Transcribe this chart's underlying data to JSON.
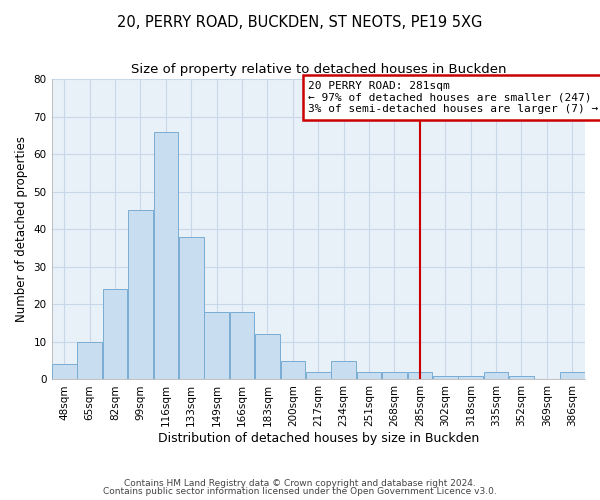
{
  "title": "20, PERRY ROAD, BUCKDEN, ST NEOTS, PE19 5XG",
  "subtitle": "Size of property relative to detached houses in Buckden",
  "xlabel": "Distribution of detached houses by size in Buckden",
  "ylabel": "Number of detached properties",
  "bar_color": "#c8ddf0",
  "bar_edge_color": "#7aadd4",
  "plot_bg_color": "#e8f0f8",
  "bins": [
    "48sqm",
    "65sqm",
    "82sqm",
    "99sqm",
    "116sqm",
    "133sqm",
    "149sqm",
    "166sqm",
    "183sqm",
    "200sqm",
    "217sqm",
    "234sqm",
    "251sqm",
    "268sqm",
    "285sqm",
    "302sqm",
    "318sqm",
    "335sqm",
    "352sqm",
    "369sqm",
    "386sqm"
  ],
  "counts": [
    4,
    10,
    24,
    45,
    66,
    38,
    18,
    18,
    12,
    5,
    2,
    5,
    2,
    2,
    2,
    1,
    1,
    2,
    1,
    0,
    2
  ],
  "vline_bin_index": 14,
  "vline_color": "#cc0000",
  "annotation_title": "20 PERRY ROAD: 281sqm",
  "annotation_line1": "← 97% of detached houses are smaller (247)",
  "annotation_line2": "3% of semi-detached houses are larger (7) →",
  "annotation_box_color": "#ffffff",
  "annotation_box_edge": "#cc0000",
  "ylim": [
    0,
    80
  ],
  "yticks": [
    0,
    10,
    20,
    30,
    40,
    50,
    60,
    70,
    80
  ],
  "footnote1": "Contains HM Land Registry data © Crown copyright and database right 2024.",
  "footnote2": "Contains public sector information licensed under the Open Government Licence v3.0.",
  "background_color": "#ffffff",
  "grid_color": "#c8d8e8",
  "title_fontsize": 10.5,
  "subtitle_fontsize": 9.5,
  "xlabel_fontsize": 9,
  "ylabel_fontsize": 8.5,
  "tick_fontsize": 7.5,
  "footnote_fontsize": 6.5,
  "annotation_fontsize": 8
}
